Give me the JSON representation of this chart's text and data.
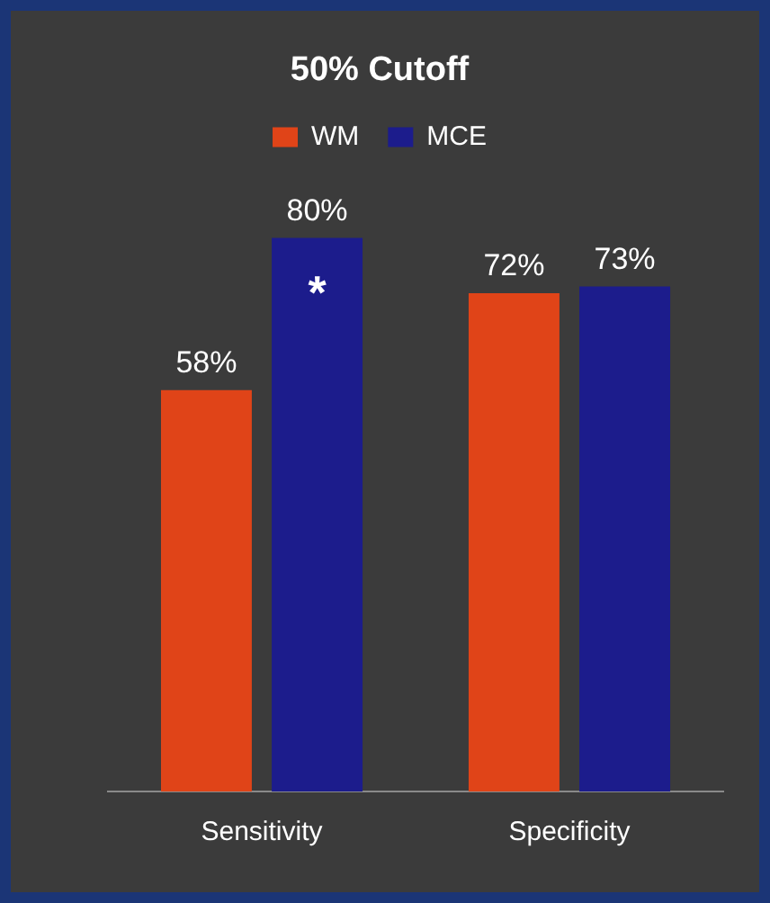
{
  "chart_data": {
    "type": "bar",
    "title": "50% Cutoff",
    "categories": [
      "Sensitivity",
      "Specificity"
    ],
    "series": [
      {
        "name": "WM",
        "color": "#e04418",
        "values": [
          58,
          72
        ],
        "value_labels": [
          "58%",
          "72%"
        ]
      },
      {
        "name": "MCE",
        "color": "#1c1c8c",
        "values": [
          80,
          73
        ],
        "value_labels": [
          "80%",
          "73%"
        ]
      }
    ],
    "annotations": [
      "*"
    ],
    "legend": "top",
    "grid": false,
    "tick_labels": "x"
  }
}
